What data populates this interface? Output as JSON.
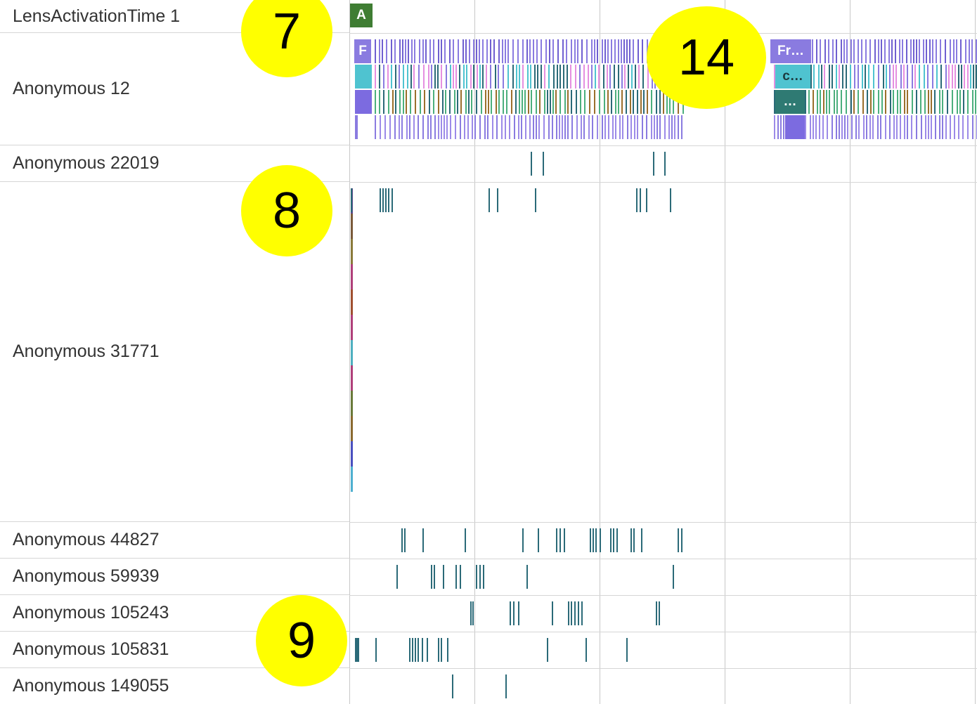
{
  "tracks": [
    {
      "name": "LensActivationTime 1"
    },
    {
      "name": "Anonymous 12"
    },
    {
      "name": "Anonymous 22019"
    },
    {
      "name": "Anonymous 31771"
    },
    {
      "name": "Anonymous 44827"
    },
    {
      "name": "Anonymous 59939"
    },
    {
      "name": "Anonymous 105243"
    },
    {
      "name": "Anonymous 105831"
    },
    {
      "name": "Anonymous 149055"
    }
  ],
  "badges": [
    "7",
    "14",
    "8",
    "9"
  ],
  "slice_labels": {
    "a": "A",
    "f": "F",
    "fr": "Fr…",
    "c": "c…",
    "dots": "…"
  },
  "colors": {
    "teal": "#2b6a78",
    "purple": "#8a7be0",
    "cyan": "#4fc3d0",
    "green": "#4caf7d",
    "pink": "#e58fe0",
    "darkgreen": "#3f7d33",
    "gridline": "#c8c8c8",
    "badge": "#ffff00"
  }
}
